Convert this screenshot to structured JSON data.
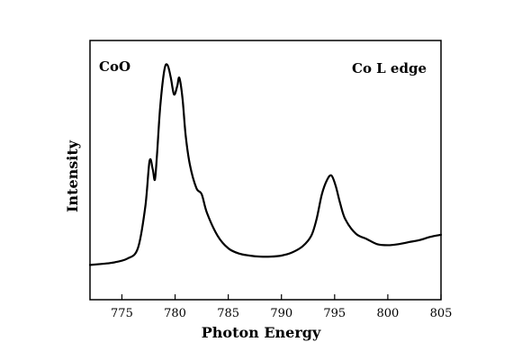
{
  "chart_data": {
    "type": "line",
    "title": "",
    "xlabel": "Photon Energy",
    "ylabel": "Intensity",
    "xlim": [
      772,
      805
    ],
    "ylim": [
      0,
      1
    ],
    "x_ticks": [
      775,
      780,
      785,
      790,
      795,
      800,
      805
    ],
    "y_ticks_shown": false,
    "grid": false,
    "legend": "none",
    "annotations": [
      {
        "text": "CoO",
        "position": "top-left"
      },
      {
        "text": "Co L edge",
        "position": "top-right"
      }
    ],
    "series": [
      {
        "x": [
          772,
          774,
          775.5,
          776.5,
          777.2,
          777.6,
          777.9,
          778.1,
          778.3,
          778.6,
          779.0,
          779.3,
          779.6,
          779.9,
          780.2,
          780.4,
          780.7,
          781.0,
          781.4,
          782.0,
          782.5,
          783.0,
          784.0,
          785.0,
          786.0,
          787.0,
          788.0,
          789.0,
          790.0,
          791.0,
          792.0,
          792.8,
          793.3,
          793.8,
          794.3,
          794.7,
          795.1,
          795.5,
          796.0,
          797.0,
          798.0,
          799.0,
          800.0,
          801.0,
          802.0,
          803.0,
          804.0,
          805.0
        ],
        "y": [
          0.02,
          0.03,
          0.05,
          0.1,
          0.3,
          0.52,
          0.48,
          0.43,
          0.55,
          0.78,
          0.96,
          0.98,
          0.92,
          0.84,
          0.88,
          0.92,
          0.82,
          0.64,
          0.5,
          0.39,
          0.36,
          0.27,
          0.16,
          0.1,
          0.075,
          0.065,
          0.06,
          0.06,
          0.065,
          0.08,
          0.11,
          0.16,
          0.24,
          0.36,
          0.43,
          0.45,
          0.4,
          0.32,
          0.24,
          0.17,
          0.145,
          0.12,
          0.115,
          0.12,
          0.13,
          0.14,
          0.155,
          0.165
        ]
      }
    ]
  }
}
